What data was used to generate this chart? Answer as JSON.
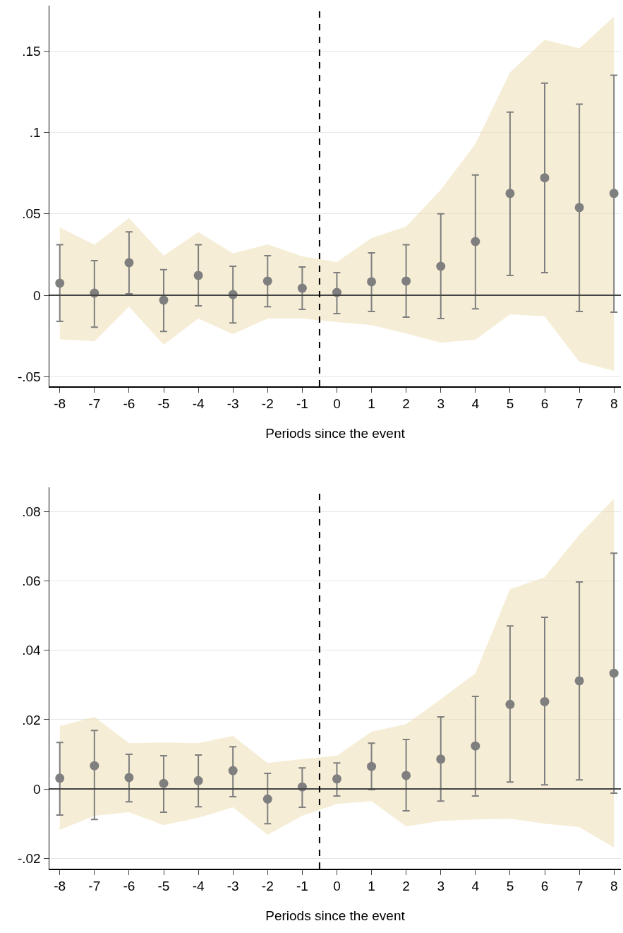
{
  "chart_data": [
    {
      "type": "scatter",
      "xlabel": "Periods since the event",
      "x": [
        -8,
        -7,
        -6,
        -5,
        -4,
        -3,
        -2,
        -1,
        0,
        1,
        2,
        3,
        4,
        5,
        6,
        7,
        8
      ],
      "xlim": [
        -8.3,
        8.2
      ],
      "xticks": [
        -8,
        -7,
        -6,
        -5,
        -4,
        -3,
        -2,
        -1,
        0,
        1,
        2,
        3,
        4,
        5,
        6,
        7,
        8
      ],
      "ylim": [
        -0.056,
        0.178
      ],
      "yticks": [
        {
          "value": -0.05,
          "label": "-.05"
        },
        0,
        {
          "value": 0.05,
          "label": ".05"
        },
        {
          "value": 0.1,
          "label": ".1"
        },
        {
          "value": 0.15,
          "label": ".15"
        }
      ],
      "grid": "y",
      "marker": "circle",
      "series": [
        {
          "color": "#7f7f7f",
          "values": [
            0.0074,
            0.0013,
            0.02,
            -0.003,
            0.0122,
            0.0004,
            0.0087,
            0.0043,
            0.0017,
            0.0083,
            0.0087,
            0.0178,
            0.033,
            0.0626,
            0.0722,
            0.0539,
            0.0626
          ],
          "errors": [
            [
              -0.0161,
              0.031
            ],
            [
              -0.0196,
              0.0213
            ],
            [
              0.0009,
              0.039
            ],
            [
              -0.0222,
              0.0157
            ],
            [
              -0.0065,
              0.031
            ],
            [
              -0.017,
              0.0178
            ],
            [
              -0.007,
              0.0243
            ],
            [
              -0.0087,
              0.0174
            ],
            [
              -0.0113,
              0.0139
            ],
            [
              -0.01,
              0.0261
            ],
            [
              -0.0135,
              0.031
            ],
            [
              -0.0143,
              0.05
            ],
            [
              -0.0083,
              0.0739
            ],
            [
              0.0122,
              0.1126
            ],
            [
              0.0139,
              0.1304
            ],
            [
              -0.01,
              0.1174
            ],
            [
              -0.0104,
              0.1352
            ]
          ],
          "lower": [
            -0.027,
            -0.0283,
            -0.007,
            -0.0304,
            -0.0143,
            -0.0239,
            -0.0143,
            -0.0143,
            -0.0165,
            -0.0183,
            -0.0235,
            -0.0291,
            -0.0274,
            -0.0117,
            -0.013,
            -0.0409,
            -0.0465
          ],
          "upper": [
            0.0417,
            0.031,
            0.0474,
            0.0243,
            0.0387,
            0.0257,
            0.0313,
            0.0239,
            0.0204,
            0.0352,
            0.0422,
            0.0648,
            0.093,
            0.137,
            0.157,
            0.1517,
            0.1713
          ]
        }
      ],
      "ref_lines": [
        {
          "axis": "y",
          "value": 0,
          "color": "#444444",
          "line_style": "solid"
        },
        {
          "axis": "x",
          "value": -0.5,
          "color": "#000000",
          "line_style": "dashed"
        }
      ]
    },
    {
      "type": "scatter",
      "xlabel": "Periods since the event",
      "x": [
        -8,
        -7,
        -6,
        -5,
        -4,
        -3,
        -2,
        -1,
        0,
        1,
        2,
        3,
        4,
        5,
        6,
        7,
        8
      ],
      "xlim": [
        -8.3,
        8.2
      ],
      "xticks": [
        -8,
        -7,
        -6,
        -5,
        -4,
        -3,
        -2,
        -1,
        0,
        1,
        2,
        3,
        4,
        5,
        6,
        7,
        8
      ],
      "ylim": [
        -0.023,
        0.087
      ],
      "yticks": [
        {
          "value": -0.02,
          "label": "-.02"
        },
        0,
        {
          "value": 0.02,
          "label": ".02"
        },
        {
          "value": 0.04,
          "label": ".04"
        },
        {
          "value": 0.06,
          "label": ".06"
        },
        {
          "value": 0.08,
          "label": ".08"
        }
      ],
      "grid": "y",
      "marker": "circle",
      "series": [
        {
          "color": "#7f7f7f",
          "values": [
            0.0031,
            0.0067,
            0.0033,
            0.0016,
            0.0024,
            0.0053,
            -0.0029,
            0.0006,
            0.0029,
            0.0065,
            0.0039,
            0.0086,
            0.0124,
            0.0244,
            0.0252,
            0.0312,
            0.0334
          ],
          "errors": [
            [
              -0.0075,
              0.0134
            ],
            [
              -0.0088,
              0.0169
            ],
            [
              -0.0037,
              0.01
            ],
            [
              -0.0067,
              0.0096
            ],
            [
              -0.0051,
              0.0098
            ],
            [
              -0.0022,
              0.0122
            ],
            [
              -0.01,
              0.0045
            ],
            [
              -0.0053,
              0.0061
            ],
            [
              -0.002,
              0.0075
            ],
            [
              -0.0002,
              0.0132
            ],
            [
              -0.0063,
              0.0143
            ],
            [
              -0.0035,
              0.0208
            ],
            [
              -0.002,
              0.0267
            ],
            [
              0.002,
              0.047
            ],
            [
              0.0012,
              0.0495
            ],
            [
              0.0026,
              0.0597
            ],
            [
              -0.0012,
              0.068
            ]
          ],
          "lower": [
            -0.0118,
            -0.0077,
            -0.0067,
            -0.0104,
            -0.0083,
            -0.0053,
            -0.0132,
            -0.0077,
            -0.0043,
            -0.0035,
            -0.0108,
            -0.0092,
            -0.0088,
            -0.0086,
            -0.01,
            -0.011,
            -0.0169
          ],
          "upper": [
            0.0181,
            0.0208,
            0.0132,
            0.0134,
            0.0132,
            0.0153,
            0.0075,
            0.0086,
            0.0096,
            0.0165,
            0.0187,
            0.0259,
            0.0334,
            0.0576,
            0.0611,
            0.0733,
            0.0837
          ]
        }
      ],
      "ref_lines": [
        {
          "axis": "y",
          "value": 0,
          "color": "#444444",
          "line_style": "solid"
        },
        {
          "axis": "x",
          "value": -0.5,
          "color": "#000000",
          "line_style": "dashed"
        }
      ]
    }
  ]
}
